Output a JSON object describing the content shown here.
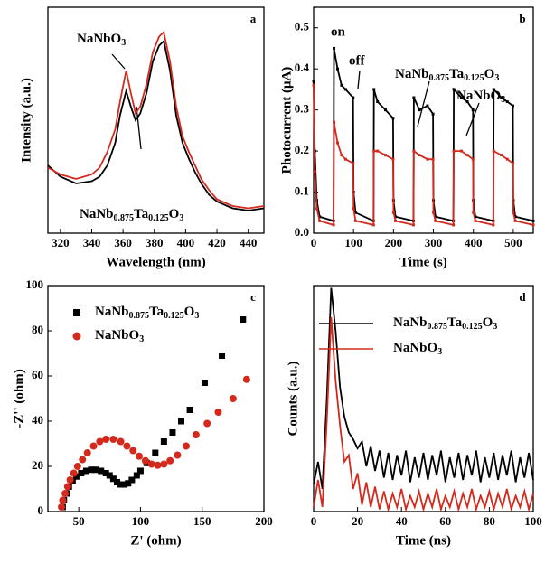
{
  "chart_data": [
    {
      "type": "line",
      "panel_label": "a",
      "xlabel": "Wavelength (nm)",
      "ylabel": "Intensity (a.u.)",
      "x": [
        312,
        320,
        330,
        340,
        345,
        350,
        355,
        358,
        362,
        365,
        368,
        371,
        375,
        379,
        383,
        386,
        390,
        394,
        398,
        402,
        406,
        410,
        415,
        420,
        430,
        440,
        450
      ],
      "series": [
        {
          "name": "NaNb0.875Ta0.125O3",
          "color": "#000000",
          "values": [
            0.3,
            0.25,
            0.22,
            0.23,
            0.25,
            0.3,
            0.4,
            0.52,
            0.63,
            0.56,
            0.5,
            0.53,
            0.62,
            0.76,
            0.83,
            0.85,
            0.72,
            0.52,
            0.4,
            0.33,
            0.27,
            0.22,
            0.17,
            0.14,
            0.11,
            0.1,
            0.11
          ]
        },
        {
          "name": "NaNbO3",
          "color": "#d42a1e",
          "values": [
            0.29,
            0.26,
            0.24,
            0.26,
            0.29,
            0.36,
            0.46,
            0.58,
            0.72,
            0.62,
            0.53,
            0.56,
            0.66,
            0.8,
            0.87,
            0.89,
            0.76,
            0.56,
            0.43,
            0.36,
            0.3,
            0.24,
            0.19,
            0.15,
            0.12,
            0.11,
            0.12
          ]
        }
      ],
      "xlim": [
        312,
        450
      ],
      "ylim": [
        0,
        1
      ],
      "xticks": [
        320,
        340,
        360,
        380,
        400,
        420,
        440
      ],
      "yticks": []
    },
    {
      "type": "line",
      "panel_label": "b",
      "xlabel": "Time (s)",
      "ylabel": "Photocurrent (μA)",
      "markers": true,
      "annotations": [
        "on",
        "off"
      ],
      "x": [
        0,
        3,
        8,
        15,
        50,
        51,
        60,
        70,
        80,
        99,
        100,
        105,
        150,
        151,
        160,
        180,
        199,
        200,
        205,
        250,
        251,
        265,
        285,
        299,
        300,
        305,
        350,
        351,
        370,
        385,
        399,
        400,
        405,
        450,
        451,
        470,
        485,
        499,
        500,
        505,
        550
      ],
      "series": [
        {
          "name": "NaNb0.875Ta0.125O3",
          "color": "#000000",
          "values": [
            0.37,
            0.2,
            0.08,
            0.04,
            0.03,
            0.45,
            0.4,
            0.36,
            0.35,
            0.33,
            0.1,
            0.05,
            0.03,
            0.35,
            0.32,
            0.3,
            0.28,
            0.08,
            0.04,
            0.03,
            0.33,
            0.3,
            0.31,
            0.29,
            0.08,
            0.04,
            0.03,
            0.35,
            0.33,
            0.32,
            0.3,
            0.08,
            0.04,
            0.03,
            0.35,
            0.33,
            0.32,
            0.31,
            0.08,
            0.04,
            0.03
          ]
        },
        {
          "name": "NaNbO3",
          "color": "#d42a1e",
          "values": [
            0.36,
            0.15,
            0.06,
            0.03,
            0.02,
            0.27,
            0.22,
            0.19,
            0.18,
            0.17,
            0.06,
            0.03,
            0.02,
            0.2,
            0.2,
            0.19,
            0.18,
            0.05,
            0.03,
            0.02,
            0.2,
            0.19,
            0.18,
            0.18,
            0.05,
            0.03,
            0.02,
            0.2,
            0.2,
            0.19,
            0.18,
            0.05,
            0.03,
            0.02,
            0.2,
            0.19,
            0.18,
            0.17,
            0.05,
            0.03,
            0.02
          ]
        }
      ],
      "xlim": [
        0,
        550
      ],
      "ylim": [
        0,
        0.55
      ],
      "xticks": [
        0,
        100,
        200,
        300,
        400,
        500
      ],
      "yticks": [
        {
          "value": 0,
          "label": "0.0"
        },
        0.1,
        0.2,
        0.3,
        0.4,
        0.5
      ]
    },
    {
      "type": "scatter",
      "panel_label": "c",
      "xlabel": "Z' (ohm)",
      "ylabel": "-Z'' (ohm)",
      "legend": "upper-left",
      "series": [
        {
          "name": "NaNb0.875Ta0.125O3",
          "color": "#000000",
          "marker": "square",
          "x": [
            37,
            38,
            40,
            42,
            45,
            48,
            52,
            56,
            60,
            64,
            68,
            72,
            75,
            78,
            81,
            84,
            87,
            90,
            93,
            97,
            100,
            105,
            112,
            119,
            126,
            133,
            140,
            152,
            166,
            183
          ],
          "values": [
            2,
            5,
            8,
            11,
            13.5,
            15.5,
            17,
            18,
            18.5,
            18.5,
            18,
            17,
            16,
            14.5,
            13,
            12,
            12,
            12.5,
            14,
            16,
            18,
            21.5,
            26,
            31,
            35,
            40,
            45,
            57,
            69,
            85
          ]
        },
        {
          "name": "NaNbO3",
          "color": "#d42a1e",
          "marker": "circle",
          "x": [
            36,
            37,
            39,
            41,
            43,
            46,
            49,
            53,
            57,
            62,
            67,
            72,
            78,
            84,
            89,
            94,
            99,
            104,
            109,
            114,
            119,
            124,
            130,
            137,
            145,
            154,
            163,
            175,
            186
          ],
          "values": [
            2,
            5,
            8,
            11,
            14,
            17,
            20,
            23,
            26,
            29,
            31,
            32,
            32,
            31,
            29,
            27,
            24.5,
            22.5,
            21,
            20.5,
            21,
            22.5,
            25,
            29,
            34,
            39,
            44,
            50,
            58.5
          ]
        }
      ],
      "xlim": [
        25,
        200
      ],
      "ylim": [
        0,
        100
      ],
      "xticks": [
        50,
        100,
        150,
        200
      ],
      "yticks": [
        0,
        20,
        40,
        60,
        80,
        100
      ]
    },
    {
      "type": "line",
      "panel_label": "d",
      "xlabel": "Time (ns)",
      "ylabel": "Counts (a.u.)",
      "legend": "upper-right",
      "x": [
        0,
        2,
        4,
        6,
        8,
        10,
        12,
        14,
        16,
        18,
        20,
        22,
        24,
        26,
        28,
        30,
        32,
        34,
        36,
        38,
        40,
        42,
        44,
        46,
        48,
        50,
        52,
        54,
        56,
        58,
        60,
        62,
        64,
        66,
        68,
        70,
        72,
        74,
        76,
        78,
        80,
        82,
        84,
        86,
        88,
        90,
        92,
        94,
        96,
        98,
        100
      ],
      "series": [
        {
          "name": "NaNb0.875Ta0.125O3",
          "color": "#000000",
          "values": [
            0.12,
            0.22,
            0.1,
            0.5,
            0.99,
            0.8,
            0.55,
            0.42,
            0.35,
            0.32,
            0.28,
            0.31,
            0.2,
            0.29,
            0.18,
            0.27,
            0.15,
            0.26,
            0.14,
            0.25,
            0.16,
            0.27,
            0.13,
            0.24,
            0.15,
            0.26,
            0.14,
            0.25,
            0.16,
            0.27,
            0.13,
            0.24,
            0.15,
            0.26,
            0.14,
            0.25,
            0.16,
            0.27,
            0.13,
            0.24,
            0.15,
            0.26,
            0.14,
            0.25,
            0.16,
            0.27,
            0.13,
            0.24,
            0.15,
            0.26,
            0.14
          ]
        },
        {
          "name": "NaNbO3",
          "color": "#d42a1e",
          "values": [
            0.02,
            0.14,
            0.02,
            0.4,
            0.86,
            0.58,
            0.38,
            0.22,
            0.25,
            0.1,
            0.17,
            0.03,
            0.13,
            0.02,
            0.11,
            0.01,
            0.09,
            0.01,
            0.08,
            0.02,
            0.1,
            0.01,
            0.07,
            0.02,
            0.09,
            0.01,
            0.08,
            0.02,
            0.1,
            0.01,
            0.07,
            0.02,
            0.09,
            0.01,
            0.08,
            0.02,
            0.1,
            0.01,
            0.07,
            0.02,
            0.09,
            0.01,
            0.08,
            0.02,
            0.1,
            0.01,
            0.07,
            0.02,
            0.09,
            0.01,
            0.08
          ]
        }
      ],
      "xlim": [
        0,
        100
      ],
      "ylim": [
        0,
        1
      ],
      "xticks": [
        0,
        20,
        40,
        60,
        80,
        100
      ],
      "yticks": []
    }
  ]
}
